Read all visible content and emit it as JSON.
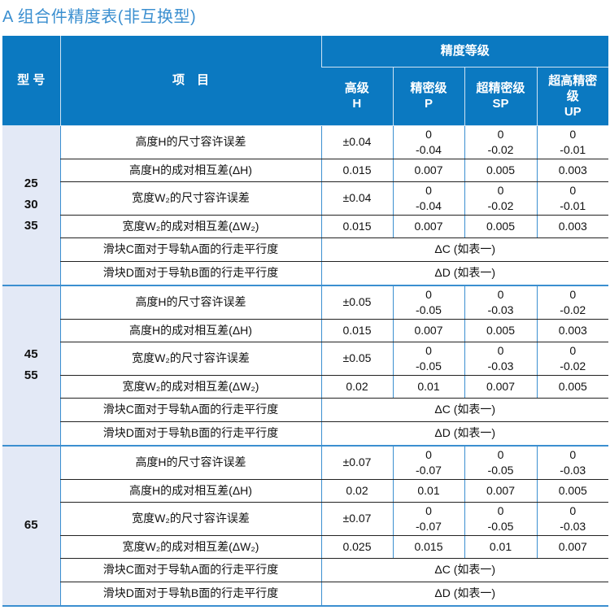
{
  "title": "A 组合件精度表(非互换型)",
  "header": {
    "type": "型 号",
    "item": "项　目",
    "grade_group": "精度等级",
    "grades": [
      {
        "name": "高级",
        "code": "H"
      },
      {
        "name": "精密级",
        "code": "P"
      },
      {
        "name": "超精密级",
        "code": "SP"
      },
      {
        "name": "超高精密级",
        "code": "UP"
      }
    ]
  },
  "colors": {
    "header_bg": "#0b79c1",
    "type_bg": "#e3e9f6",
    "title": "#3b8fd0"
  },
  "groups": [
    {
      "types": [
        "25",
        "30",
        "35"
      ],
      "rows": [
        {
          "item": "高度H的尺寸容许误差",
          "values": [
            "±0.04",
            "0\n-0.04",
            "0\n-0.02",
            "0\n-0.01"
          ]
        },
        {
          "item": "高度H的成对相互差(ΔH)",
          "values": [
            "0.015",
            "0.007",
            "0.005",
            "0.003"
          ]
        },
        {
          "item": "宽度W₂的尺寸容许误差",
          "values": [
            "±0.04",
            "0\n-0.04",
            "0\n-0.02",
            "0\n-0.01"
          ]
        },
        {
          "item": "宽度W₂的成对相互差(ΔW₂)",
          "values": [
            "0.015",
            "0.007",
            "0.005",
            "0.003"
          ]
        },
        {
          "item": "滑块C面对于导轨A面的行走平行度",
          "span": "ΔC (如表一)"
        },
        {
          "item": "滑块D面对于导轨B面的行走平行度",
          "span": "ΔD (如表一)"
        }
      ]
    },
    {
      "types": [
        "45",
        "55"
      ],
      "rows": [
        {
          "item": "高度H的尺寸容许误差",
          "values": [
            "±0.05",
            "0\n-0.05",
            "0\n-0.03",
            "0\n-0.02"
          ]
        },
        {
          "item": "高度H的成对相互差(ΔH)",
          "values": [
            "0.015",
            "0.007",
            "0.005",
            "0.003"
          ]
        },
        {
          "item": "宽度W₂的尺寸容许误差",
          "values": [
            "±0.05",
            "0\n-0.05",
            "0\n-0.03",
            "0\n-0.02"
          ]
        },
        {
          "item": "宽度W₂的成对相互差(ΔW₂)",
          "values": [
            "0.02",
            "0.01",
            "0.007",
            "0.005"
          ]
        },
        {
          "item": "滑块C面对于导轨A面的行走平行度",
          "span": "ΔC (如表一)"
        },
        {
          "item": "滑块D面对于导轨B面的行走平行度",
          "span": "ΔD (如表一)"
        }
      ]
    },
    {
      "types": [
        "65"
      ],
      "rows": [
        {
          "item": "高度H的尺寸容许误差",
          "values": [
            "±0.07",
            "0\n-0.07",
            "0\n-0.05",
            "0\n-0.03"
          ]
        },
        {
          "item": "高度H的成对相互差(ΔH)",
          "values": [
            "0.02",
            "0.01",
            "0.007",
            "0.005"
          ]
        },
        {
          "item": "宽度W₂的尺寸容许误差",
          "values": [
            "±0.07",
            "0\n-0.07",
            "0\n-0.05",
            "0\n-0.03"
          ]
        },
        {
          "item": "宽度W₂的成对相互差(ΔW₂)",
          "values": [
            "0.025",
            "0.015",
            "0.01",
            "0.007"
          ]
        },
        {
          "item": "滑块C面对于导轨A面的行走平行度",
          "span": "ΔC (如表一)"
        },
        {
          "item": "滑块D面对于导轨B面的行走平行度",
          "span": "ΔD (如表一)"
        }
      ]
    }
  ]
}
